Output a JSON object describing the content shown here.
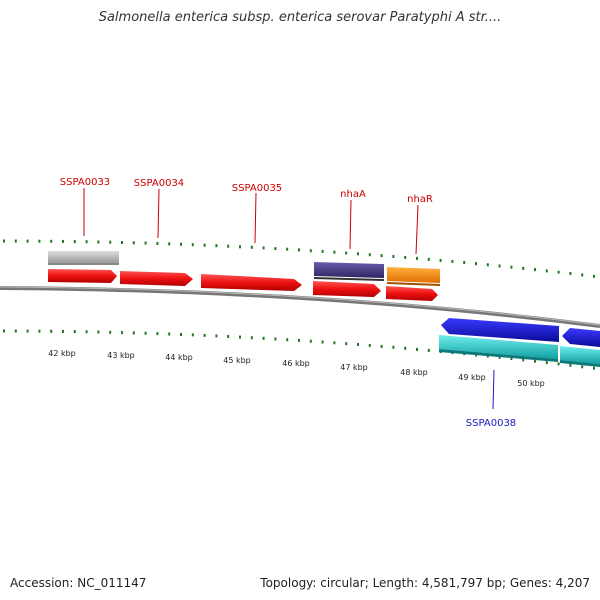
{
  "title": "Salmonella enterica subsp. enterica serovar Paratyphi A str....",
  "footer": {
    "accession_label": "Accession:",
    "accession": "NC_011147",
    "topology_label": "Topology:",
    "topology": "circular;",
    "length_label": "Length:",
    "length": "4,581,797 bp;",
    "genes_label": "Genes:",
    "genes": "4,207"
  },
  "colors": {
    "forward_gene": "#ee1111",
    "forward_gene_light": "#ff8080",
    "grey_gene": "#bbbbbb",
    "purple_gene": "#4a3d8f",
    "orange_gene": "#ff9a10",
    "blue_gene": "#1414d0",
    "cyan_gene": "#20c8c8",
    "backbone": "#888888",
    "tick": "#227722",
    "label_red": "#cc0000",
    "label_blue": "#1a1ac0"
  },
  "kbp_labels": [
    "42 kbp",
    "43 kbp",
    "44 kbp",
    "45 kbp",
    "46 kbp",
    "47 kbp",
    "48 kbp",
    "49 kbp",
    "50 kbp"
  ],
  "gene_labels": [
    {
      "name": "SSPA0033",
      "color": "label_red"
    },
    {
      "name": "SSPA0034",
      "color": "label_red"
    },
    {
      "name": "SSPA0035",
      "color": "label_red"
    },
    {
      "name": "nhaA",
      "color": "label_red"
    },
    {
      "name": "nhaR",
      "color": "label_red"
    },
    {
      "name": "SSPA0038",
      "color": "label_blue"
    }
  ]
}
